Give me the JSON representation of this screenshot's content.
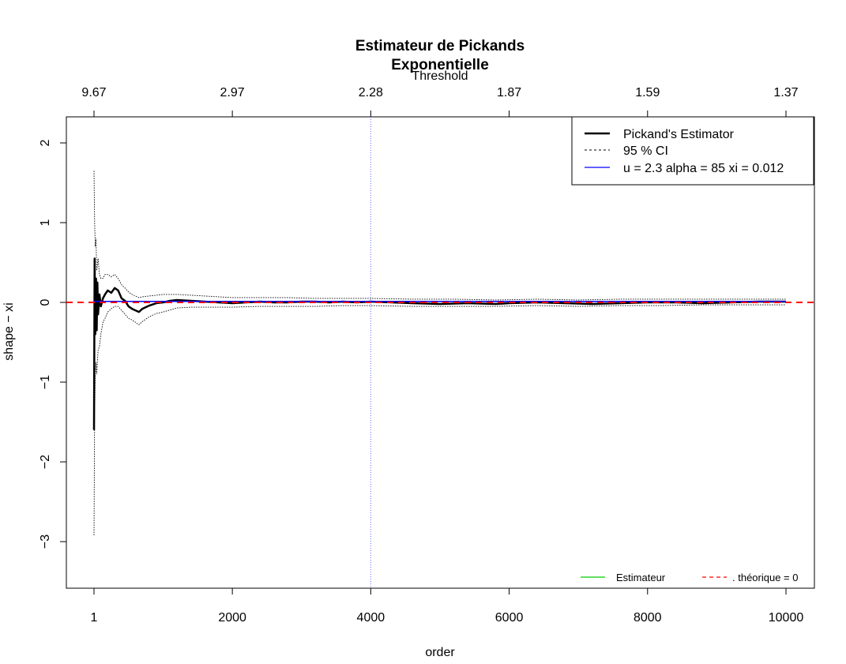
{
  "chart_data": {
    "type": "line",
    "title": "Estimateur de Pickands",
    "subtitle": "Exponentielle",
    "xlabel": "order",
    "ylabel": "shape  − xi",
    "top_axis_label": "Threshold",
    "xlim": [
      1,
      10000
    ],
    "ylim": [
      -3.5,
      2.3
    ],
    "x_ticks": [
      "1",
      "2000",
      "4000",
      "6000",
      "8000",
      "10000"
    ],
    "x_tick_values": [
      1,
      2000,
      4000,
      6000,
      8000,
      10000
    ],
    "y_ticks": [
      "−3",
      "−2",
      "−1",
      "0",
      "1",
      "2"
    ],
    "y_tick_values": [
      -3,
      -2,
      -1,
      0,
      1,
      2
    ],
    "top_ticks": [
      "9.67",
      "2.97",
      "2.28",
      "1.87",
      "1.59",
      "1.37"
    ],
    "top_tick_positions": [
      1,
      2000,
      4000,
      6000,
      8000,
      10000
    ],
    "selected_order": 4000,
    "theoretical_value": 0,
    "grid": false,
    "series": [
      {
        "name": "Pickand's Estimator",
        "color": "#000000",
        "x": [
          1,
          10,
          20,
          30,
          40,
          50,
          60,
          80,
          100,
          130,
          160,
          200,
          250,
          300,
          350,
          400,
          450,
          500,
          550,
          600,
          650,
          700,
          800,
          900,
          1000,
          1100,
          1200,
          1400,
          1600,
          1800,
          2000,
          2200,
          2400,
          2600,
          2800,
          3000,
          3200,
          3400,
          3600,
          3800,
          4000,
          4300,
          4600,
          5000,
          5400,
          5800,
          6000,
          6400,
          6800,
          7200,
          7600,
          8000,
          8400,
          8800,
          9200,
          9600,
          10000
        ],
        "y": [
          -1.6,
          0.55,
          -0.4,
          0.3,
          -0.35,
          0.25,
          -0.15,
          0.1,
          -0.05,
          0.05,
          0.1,
          0.15,
          0.12,
          0.18,
          0.15,
          0.05,
          0.02,
          -0.05,
          -0.08,
          -0.1,
          -0.12,
          -0.08,
          -0.04,
          -0.01,
          0.0,
          0.02,
          0.03,
          0.02,
          0.01,
          0.0,
          -0.01,
          0.0,
          0.01,
          0.0,
          0.0,
          0.01,
          0.01,
          0.0,
          0.01,
          0.0,
          0.01,
          0.0,
          -0.01,
          -0.02,
          -0.01,
          -0.02,
          -0.01,
          0.0,
          -0.01,
          -0.02,
          -0.01,
          0.0,
          0.0,
          -0.01,
          0.0,
          0.01,
          0.01
        ]
      },
      {
        "name": "95 % CI",
        "color": "#000000",
        "x": [
          1,
          10,
          20,
          30,
          40,
          60,
          80,
          100,
          130,
          160,
          200,
          250,
          300,
          350,
          400,
          450,
          500,
          550,
          600,
          650,
          700,
          800,
          900,
          1000,
          1200,
          1400,
          1600,
          1800,
          2000,
          2400,
          2800,
          3200,
          3600,
          4000,
          4600,
          5200,
          5800,
          6400,
          7000,
          7600,
          8200,
          8800,
          9400,
          10000
        ],
        "y": [
          1.65,
          1.0,
          0.7,
          0.8,
          0.4,
          0.55,
          0.35,
          0.3,
          0.3,
          0.35,
          0.35,
          0.32,
          0.35,
          0.3,
          0.22,
          0.18,
          0.13,
          0.1,
          0.08,
          0.06,
          0.07,
          0.08,
          0.09,
          0.1,
          0.1,
          0.09,
          0.08,
          0.07,
          0.06,
          0.06,
          0.06,
          0.05,
          0.05,
          0.05,
          0.04,
          0.04,
          0.03,
          0.04,
          0.03,
          0.04,
          0.04,
          0.04,
          0.04,
          0.04
        ],
        "y_lower": [
          -2.92,
          -1.4,
          -0.9,
          -0.75,
          -0.9,
          -0.6,
          -0.55,
          -0.4,
          -0.25,
          -0.2,
          -0.12,
          -0.08,
          -0.05,
          -0.05,
          -0.1,
          -0.15,
          -0.2,
          -0.22,
          -0.25,
          -0.28,
          -0.24,
          -0.18,
          -0.14,
          -0.12,
          -0.07,
          -0.06,
          -0.06,
          -0.06,
          -0.06,
          -0.05,
          -0.05,
          -0.05,
          -0.04,
          -0.04,
          -0.05,
          -0.05,
          -0.05,
          -0.04,
          -0.05,
          -0.04,
          -0.04,
          -0.03,
          -0.03,
          -0.03
        ]
      },
      {
        "name": "u = 2.3 alpha =  85 xi = 0.012",
        "color": "#0000ff",
        "x": [
          1,
          10000
        ],
        "y": [
          0.012,
          0.012
        ]
      },
      {
        "name": "Estimateur",
        "color": "#00cc00"
      },
      {
        "name": ". théorique = 0",
        "color": "#ff0000",
        "x": [
          1,
          10000
        ],
        "y": [
          0,
          0
        ]
      }
    ],
    "legend_placement": "top-right",
    "legend2_placement": "bottom-right"
  }
}
